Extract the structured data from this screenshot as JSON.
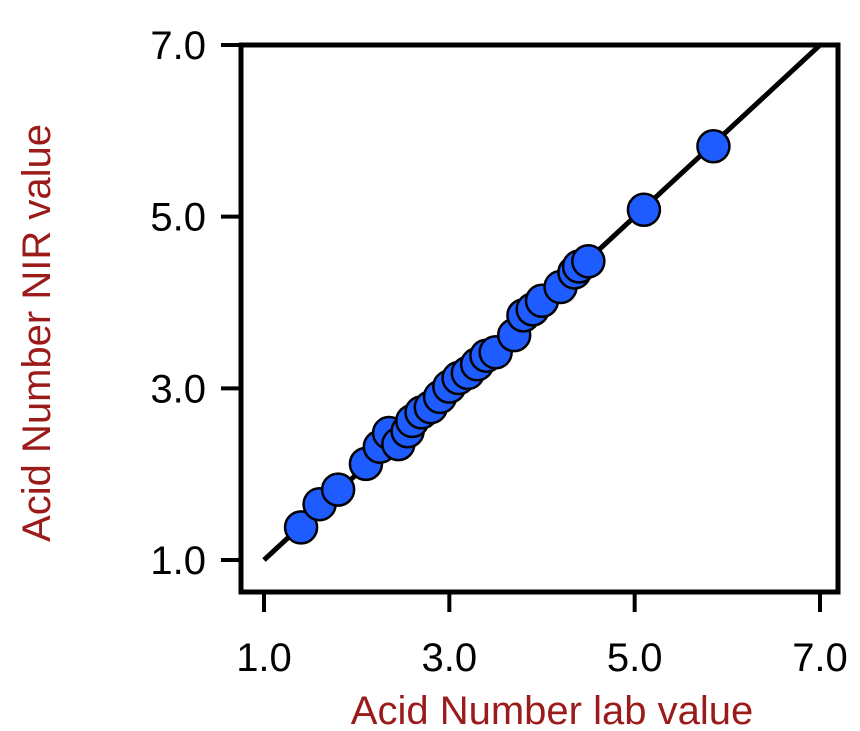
{
  "chart_data": {
    "type": "scatter",
    "title": "",
    "xlabel": "Acid Number lab value",
    "ylabel": "Acid Number NIR value",
    "xlim": [
      1.0,
      7.0
    ],
    "ylim": [
      1.0,
      7.0
    ],
    "xticks": [
      1.0,
      3.0,
      5.0,
      7.0
    ],
    "yticks": [
      1.0,
      3.0,
      5.0,
      7.0
    ],
    "tick_labels_x": [
      "1.0",
      "3.0",
      "5.0",
      "7.0"
    ],
    "tick_labels_y": [
      "1.0",
      "3.0",
      "5.0",
      "7.0"
    ],
    "grid": false,
    "legend": "none",
    "label_color": "#9b1b1b",
    "point_color": "#1f5cff",
    "line_color": "#000000",
    "fit_line": {
      "x": [
        1.0,
        7.0
      ],
      "y": [
        1.0,
        7.0
      ]
    },
    "points": [
      {
        "x": 1.4,
        "y": 1.38
      },
      {
        "x": 1.6,
        "y": 1.65
      },
      {
        "x": 1.8,
        "y": 1.82
      },
      {
        "x": 2.1,
        "y": 2.12
      },
      {
        "x": 2.25,
        "y": 2.32
      },
      {
        "x": 2.35,
        "y": 2.48
      },
      {
        "x": 2.45,
        "y": 2.35
      },
      {
        "x": 2.55,
        "y": 2.5
      },
      {
        "x": 2.6,
        "y": 2.62
      },
      {
        "x": 2.7,
        "y": 2.72
      },
      {
        "x": 2.8,
        "y": 2.78
      },
      {
        "x": 2.9,
        "y": 2.9
      },
      {
        "x": 3.0,
        "y": 3.02
      },
      {
        "x": 3.1,
        "y": 3.12
      },
      {
        "x": 3.2,
        "y": 3.18
      },
      {
        "x": 3.3,
        "y": 3.28
      },
      {
        "x": 3.4,
        "y": 3.38
      },
      {
        "x": 3.5,
        "y": 3.42
      },
      {
        "x": 3.7,
        "y": 3.62
      },
      {
        "x": 3.8,
        "y": 3.85
      },
      {
        "x": 3.9,
        "y": 3.92
      },
      {
        "x": 4.0,
        "y": 4.02
      },
      {
        "x": 4.2,
        "y": 4.18
      },
      {
        "x": 4.35,
        "y": 4.35
      },
      {
        "x": 4.4,
        "y": 4.42
      },
      {
        "x": 4.5,
        "y": 4.48
      },
      {
        "x": 5.1,
        "y": 5.08
      },
      {
        "x": 5.85,
        "y": 5.82
      }
    ]
  }
}
